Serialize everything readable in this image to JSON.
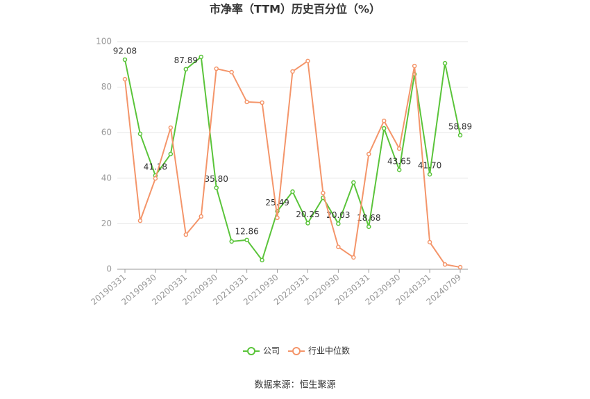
{
  "chart_data": {
    "type": "line",
    "title": "市净率（TTM）历史百分位（%）",
    "source": "数据来源：恒生聚源",
    "categories": [
      "20190331",
      null,
      "20190930",
      null,
      "20200331",
      null,
      "20200930",
      null,
      "20210331",
      null,
      "20210930",
      null,
      "20220331",
      null,
      "20220930",
      null,
      "20230331",
      null,
      "20230930",
      null,
      "20240331",
      null,
      "20240709"
    ],
    "series": [
      {
        "name": "公司",
        "color": "#5ac43a",
        "values": [
          92.08,
          59.5,
          41.18,
          50.6,
          87.89,
          93.3,
          35.8,
          12.2,
          12.86,
          4.0,
          25.49,
          34.1,
          20.25,
          31.4,
          20.03,
          38.1,
          18.68,
          61.9,
          43.65,
          85.7,
          41.7,
          90.5,
          58.89
        ],
        "value_labels": [
          "92.08",
          null,
          "41.18",
          null,
          "87.89",
          null,
          "35.80",
          null,
          "12.86",
          null,
          "25.49",
          null,
          "20.25",
          null,
          "20.03",
          null,
          "18.68",
          null,
          "43.65",
          null,
          "41.70",
          null,
          "58.89"
        ]
      },
      {
        "name": "行业中位数",
        "color": "#f4956a",
        "values": [
          83.5,
          21.3,
          39.9,
          62.2,
          15.2,
          23.2,
          88.1,
          86.6,
          73.5,
          73.2,
          22.6,
          86.9,
          91.5,
          33.5,
          9.8,
          5.2,
          50.6,
          65.2,
          53.0,
          89.3,
          11.9,
          2.1,
          0.9
        ]
      }
    ],
    "ylim": [
      0,
      100
    ],
    "yticks": [
      0,
      20,
      40,
      60,
      80,
      100
    ],
    "grid": true,
    "legend": "bottom"
  }
}
